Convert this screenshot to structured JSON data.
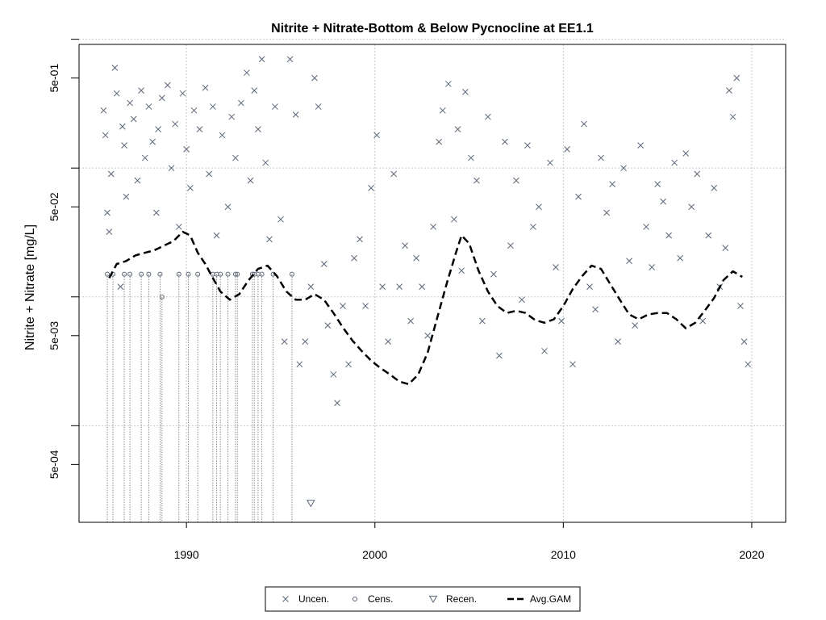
{
  "chart_data": {
    "type": "scatter",
    "title": "Nitrite + Nitrate-Bottom & Below Pycnocline at EE1.1",
    "xlabel": "",
    "ylabel": "Nitrite + Nitrate [mg/L]",
    "y_scale": "log10",
    "xlim": [
      1984.3,
      2021.8
    ],
    "ylim_log10": [
      -3.75,
      -0.04
    ],
    "x_ticks": [
      1990,
      2000,
      2010,
      2020
    ],
    "x_tick_labels": [
      "1990",
      "2000",
      "2010",
      "2020"
    ],
    "y_ticks": [
      0.0005,
      0.005,
      0.05,
      0.5
    ],
    "y_tick_labels": [
      "5e-04",
      "5e-03",
      "5e-02",
      "5e-01"
    ],
    "minor_y_ticks": [
      0.001,
      0.01,
      0.1,
      1
    ],
    "grid": true,
    "legend_position": "bottom-center",
    "legend": [
      {
        "label": "Uncen.",
        "symbol": "x"
      },
      {
        "label": "Cens.",
        "symbol": "circle"
      },
      {
        "label": "Recen.",
        "symbol": "triangle-down"
      },
      {
        "label": "Avg.GAM",
        "symbol": "dashed-line"
      }
    ],
    "colors": {
      "points": "#5a6678",
      "gam": "#000000",
      "grid": "#c8c8c8",
      "censored_line": "#8c8c8c"
    },
    "series": [
      {
        "name": "Uncen.",
        "marker": "x",
        "x": [
          1985.6,
          1985.7,
          1985.8,
          1985.9,
          1986.0,
          1986.2,
          1986.3,
          1986.5,
          1986.6,
          1986.7,
          1986.8,
          1987.0,
          1987.2,
          1987.4,
          1987.6,
          1987.8,
          1988.0,
          1988.2,
          1988.4,
          1988.5,
          1988.7,
          1989.0,
          1989.2,
          1989.4,
          1989.6,
          1989.8,
          1990.0,
          1990.2,
          1990.4,
          1990.7,
          1991.0,
          1991.2,
          1991.4,
          1991.6,
          1991.9,
          1992.2,
          1992.4,
          1992.6,
          1992.9,
          1993.2,
          1993.4,
          1993.6,
          1993.8,
          1994.0,
          1994.2,
          1994.4,
          1994.7,
          1995.0,
          1995.2,
          1995.5,
          1995.8,
          1996.0,
          1996.3,
          1996.6,
          1996.8,
          1997.0,
          1997.3,
          1997.5,
          1997.8,
          1998.0,
          1998.3,
          1998.6,
          1998.9,
          1999.2,
          1999.5,
          1999.8,
          2000.1,
          2000.4,
          2000.7,
          2001.0,
          2001.3,
          2001.6,
          2001.9,
          2002.2,
          2002.5,
          2002.8,
          2003.1,
          2003.4,
          2003.6,
          2003.9,
          2004.2,
          2004.4,
          2004.6,
          2004.8,
          2005.1,
          2005.4,
          2005.7,
          2006.0,
          2006.3,
          2006.6,
          2006.9,
          2007.2,
          2007.5,
          2007.8,
          2008.1,
          2008.4,
          2008.7,
          2009.0,
          2009.3,
          2009.6,
          2009.9,
          2010.2,
          2010.5,
          2010.8,
          2011.1,
          2011.4,
          2011.7,
          2012.0,
          2012.3,
          2012.6,
          2012.9,
          2013.2,
          2013.5,
          2013.8,
          2014.1,
          2014.4,
          2014.7,
          2015.0,
          2015.3,
          2015.6,
          2015.9,
          2016.2,
          2016.5,
          2016.8,
          2017.1,
          2017.4,
          2017.7,
          2018.0,
          2018.3,
          2018.6,
          2018.8,
          2019.0,
          2019.2,
          2019.4,
          2019.6,
          2019.8
        ],
        "y": [
          0.28,
          0.18,
          0.045,
          0.032,
          0.09,
          0.6,
          0.38,
          0.012,
          0.21,
          0.15,
          0.06,
          0.32,
          0.24,
          0.08,
          0.4,
          0.12,
          0.3,
          0.16,
          0.045,
          0.2,
          0.35,
          0.44,
          0.1,
          0.22,
          0.035,
          0.38,
          0.14,
          0.07,
          0.28,
          0.2,
          0.42,
          0.09,
          0.3,
          0.03,
          0.18,
          0.05,
          0.25,
          0.12,
          0.32,
          0.55,
          0.08,
          0.4,
          0.2,
          0.7,
          0.11,
          0.028,
          0.3,
          0.04,
          0.0045,
          0.7,
          0.26,
          0.003,
          0.0045,
          0.012,
          0.5,
          0.3,
          0.018,
          0.006,
          0.0025,
          0.0015,
          0.0085,
          0.003,
          0.02,
          0.028,
          0.0085,
          0.07,
          0.18,
          0.012,
          0.0045,
          0.09,
          0.012,
          0.025,
          0.0065,
          0.02,
          0.012,
          0.005,
          0.035,
          0.16,
          0.28,
          0.45,
          0.04,
          0.2,
          0.016,
          0.39,
          0.12,
          0.08,
          0.0065,
          0.25,
          0.015,
          0.0035,
          0.16,
          0.025,
          0.08,
          0.0095,
          0.15,
          0.035,
          0.05,
          0.0038,
          0.11,
          0.017,
          0.0065,
          0.14,
          0.003,
          0.06,
          0.22,
          0.012,
          0.008,
          0.12,
          0.045,
          0.075,
          0.0045,
          0.1,
          0.019,
          0.006,
          0.15,
          0.035,
          0.017,
          0.075,
          0.055,
          0.03,
          0.11,
          0.02,
          0.13,
          0.05,
          0.09,
          0.0065,
          0.03,
          0.07,
          0.012,
          0.024,
          0.4,
          0.25,
          0.5,
          0.0085,
          0.0045,
          0.003
        ],
        "description": "uncensored observations"
      },
      {
        "name": "Cens.",
        "marker": "circle",
        "x": [
          1985.8,
          1986.1,
          1986.7,
          1987.0,
          1987.6,
          1988.0,
          1988.6,
          1988.7,
          1989.6,
          1990.1,
          1990.6,
          1991.4,
          1991.6,
          1991.8,
          1992.2,
          1992.6,
          1992.7,
          1993.5,
          1993.6,
          1993.8,
          1994.0,
          1994.6,
          1995.6
        ],
        "y": [
          0.015,
          0.015,
          0.015,
          0.015,
          0.015,
          0.015,
          0.015,
          0.01,
          0.015,
          0.015,
          0.015,
          0.015,
          0.015,
          0.015,
          0.015,
          0.015,
          0.015,
          0.015,
          0.015,
          0.015,
          0.015,
          0.015,
          0.015
        ]
      },
      {
        "name": "Recen.",
        "marker": "triangle-down",
        "x": [
          1996.6
        ],
        "y": [
          0.00025
        ]
      },
      {
        "name": "Avg.GAM",
        "marker": "dashed-line",
        "x": [
          1985.9,
          1986.3,
          1986.8,
          1987.3,
          1987.8,
          1988.3,
          1988.8,
          1989.3,
          1989.8,
          1990.2,
          1990.6,
          1991.0,
          1991.4,
          1991.8,
          1992.3,
          1992.8,
          1993.3,
          1993.8,
          1994.3,
          1994.8,
          1995.3,
          1995.8,
          1996.3,
          1996.8,
          1997.3,
          1997.8,
          1998.3,
          1998.8,
          1999.3,
          1999.8,
          2000.3,
          2000.8,
          2001.3,
          2001.8,
          2002.3,
          2002.8,
          2003.3,
          2003.8,
          2004.3,
          2004.6,
          2005.0,
          2005.5,
          2006.0,
          2006.5,
          2007.0,
          2007.5,
          2008.0,
          2008.5,
          2009.0,
          2009.5,
          2010.0,
          2010.5,
          2011.0,
          2011.5,
          2012.0,
          2012.5,
          2013.0,
          2013.5,
          2014.0,
          2014.5,
          2015.0,
          2015.5,
          2016.0,
          2016.5,
          2017.0,
          2017.5,
          2018.0,
          2018.5,
          2019.0,
          2019.5
        ],
        "y": [
          0.014,
          0.018,
          0.019,
          0.021,
          0.022,
          0.023,
          0.025,
          0.027,
          0.032,
          0.03,
          0.022,
          0.018,
          0.014,
          0.011,
          0.0095,
          0.0105,
          0.0135,
          0.0165,
          0.0175,
          0.0145,
          0.011,
          0.0095,
          0.0095,
          0.0105,
          0.0095,
          0.0075,
          0.0058,
          0.0046,
          0.0038,
          0.0032,
          0.0028,
          0.0025,
          0.0022,
          0.0021,
          0.0025,
          0.0037,
          0.0068,
          0.0125,
          0.022,
          0.03,
          0.026,
          0.016,
          0.011,
          0.0085,
          0.0075,
          0.0078,
          0.0075,
          0.0066,
          0.0063,
          0.0067,
          0.0085,
          0.0115,
          0.0145,
          0.0175,
          0.0165,
          0.0125,
          0.0095,
          0.0073,
          0.0067,
          0.0073,
          0.0075,
          0.0075,
          0.0067,
          0.0057,
          0.0063,
          0.0078,
          0.0098,
          0.0135,
          0.0158,
          0.0143
        ]
      }
    ]
  }
}
